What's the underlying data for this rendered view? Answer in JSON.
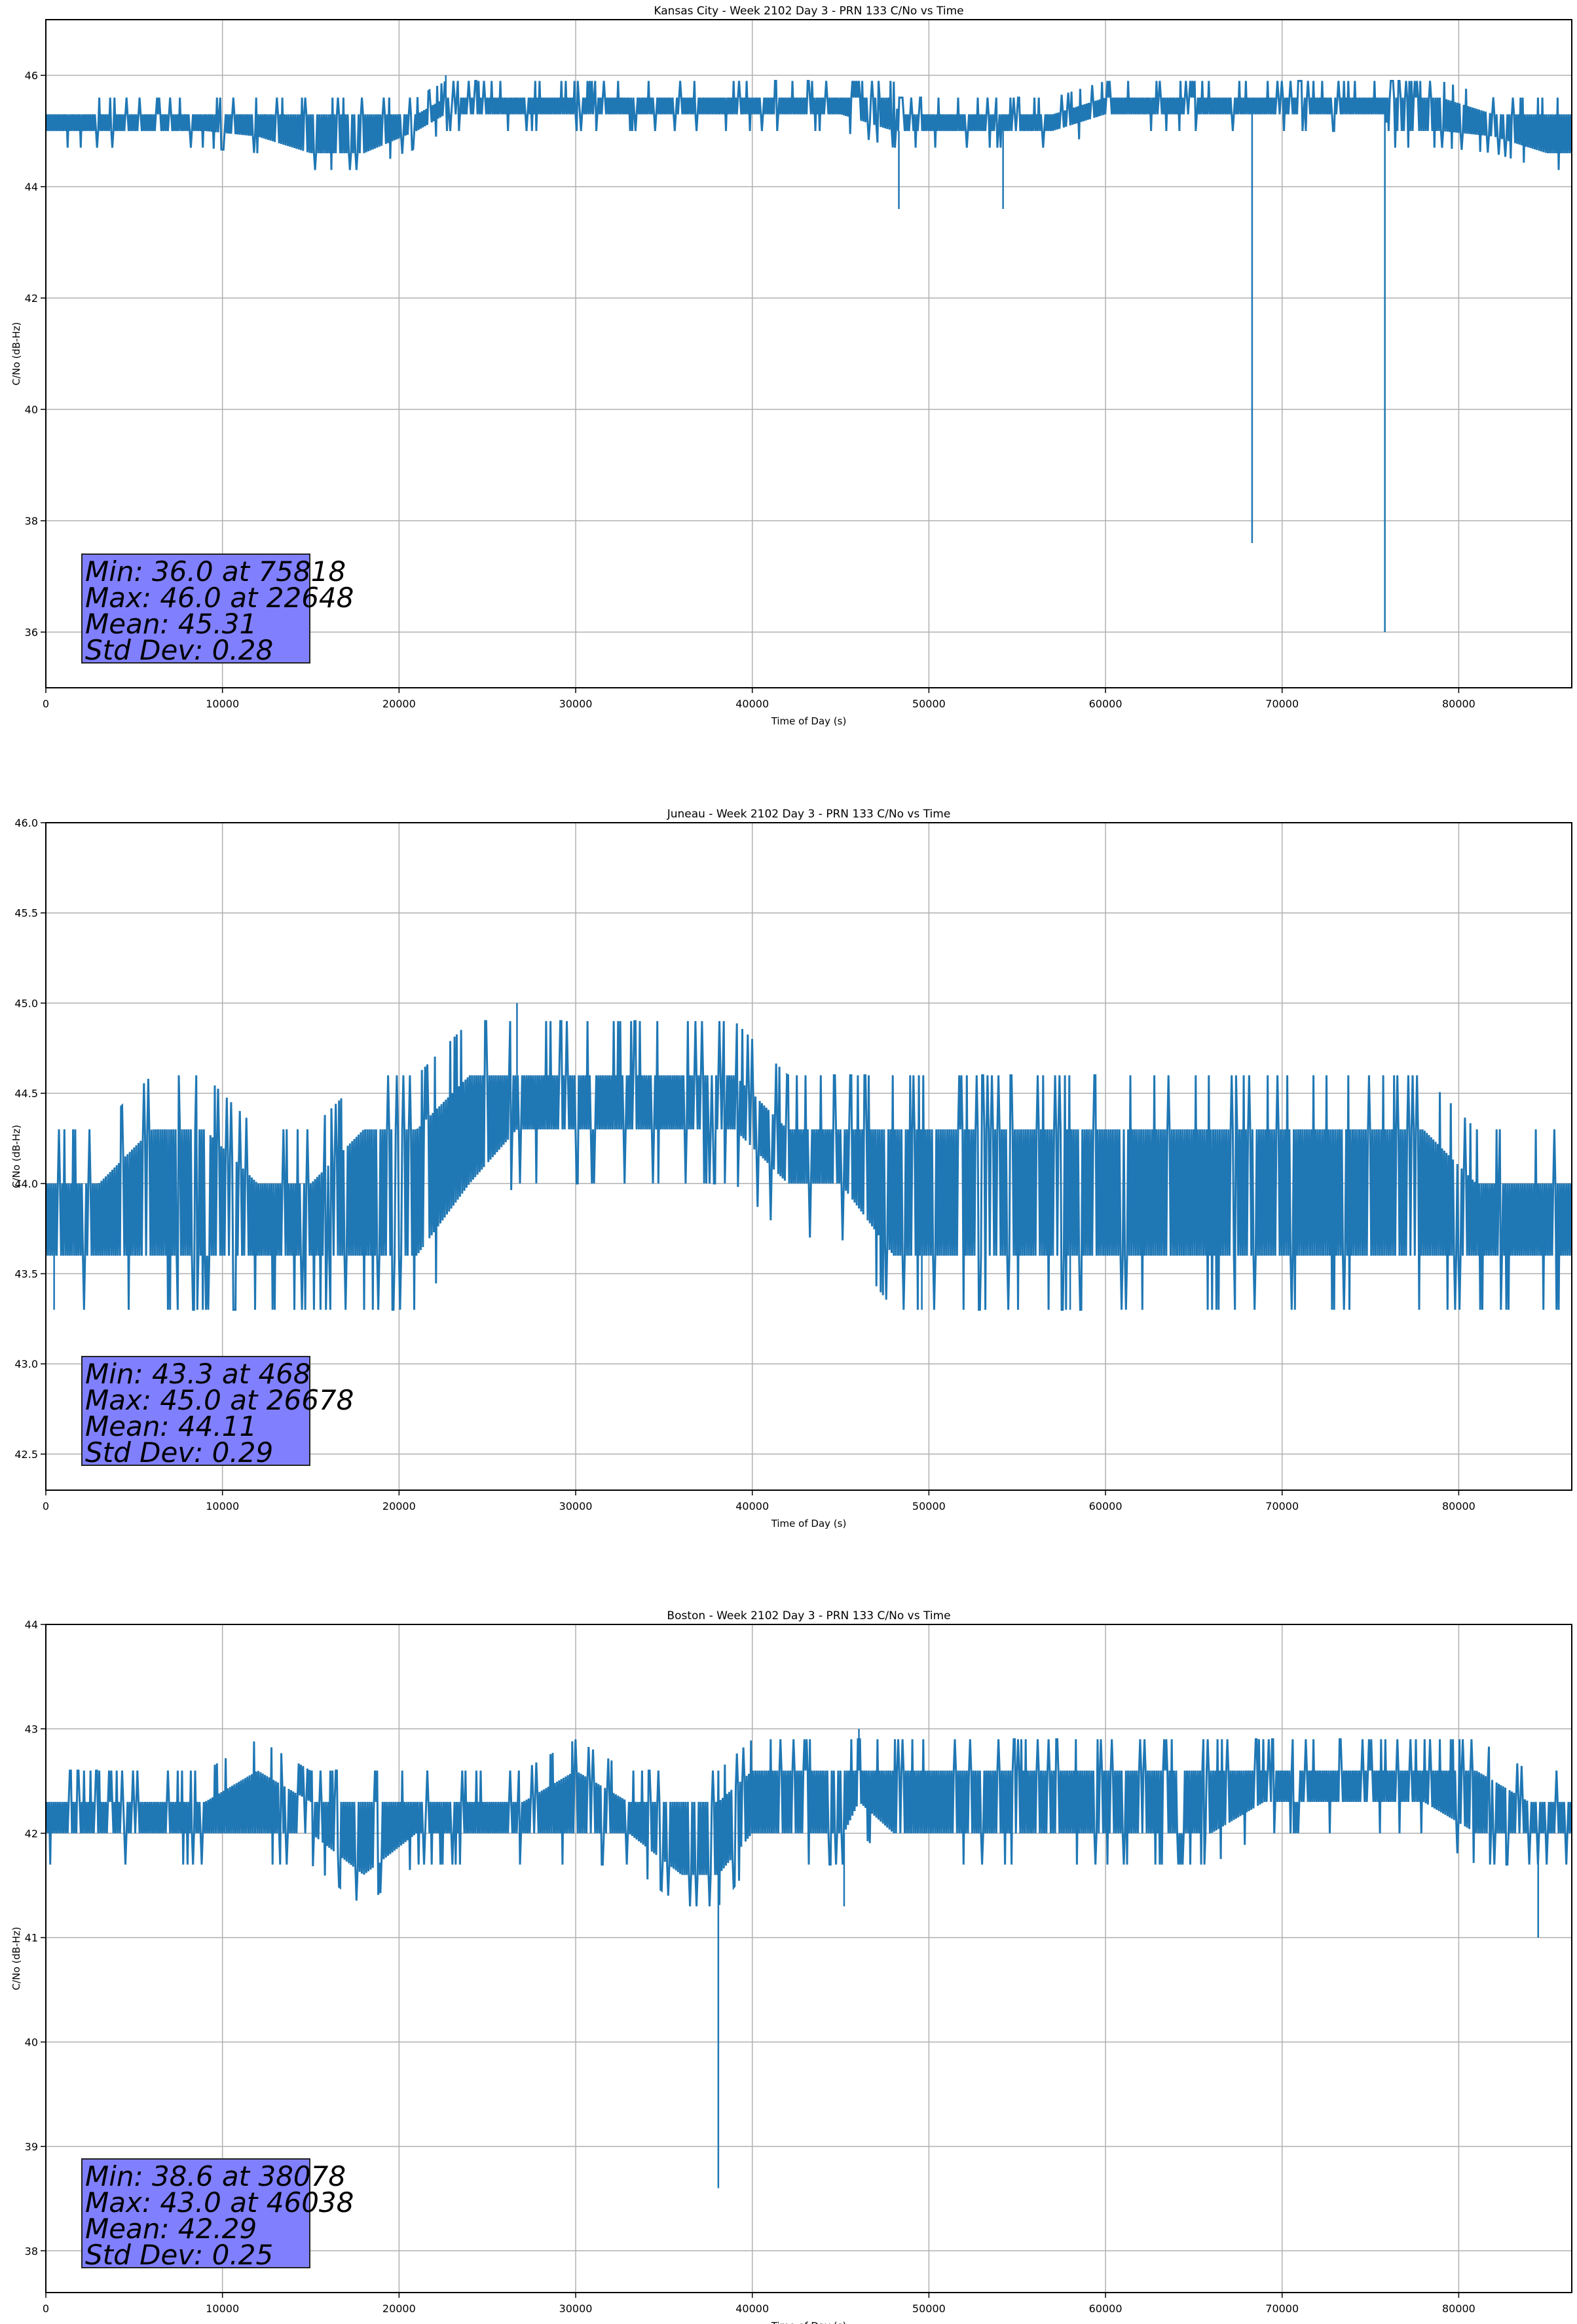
{
  "figure": {
    "colors": {
      "line": "#1f77b4",
      "grid": "#b0b0b0",
      "stats_box": "#8080ff"
    }
  },
  "chart_data": [
    {
      "type": "line",
      "title": "Kansas City - Week 2102 Day 3 - PRN 133 C/No vs Time",
      "xlabel": "Time of Day (s)",
      "ylabel": "C/No (dB-Hz)",
      "xlim": [
        0,
        86400
      ],
      "ylim": [
        35,
        47
      ],
      "xticks": [
        0,
        10000,
        20000,
        30000,
        40000,
        50000,
        60000,
        70000,
        80000
      ],
      "yticks": [
        36,
        38,
        40,
        42,
        44,
        46
      ],
      "ytick_labels": [
        "36",
        "38",
        "40",
        "42",
        "44",
        "46"
      ],
      "grid": true,
      "series": [
        {
          "values_description": "C/No sampled once per second; levels quantized to 0.3 dB steps",
          "x": [
            0,
            3000,
            6000,
            9000,
            12000,
            15000,
            18000,
            21000,
            22648,
            24000,
            27000,
            30000,
            33000,
            36000,
            39000,
            42000,
            45000,
            48000,
            48300,
            51000,
            54000,
            54200,
            57000,
            60000,
            63000,
            66000,
            68300,
            68500,
            70000,
            73000,
            75818,
            76000,
            79000,
            82000,
            85000,
            86400
          ],
          "y": [
            45.1,
            45.2,
            45.2,
            45.2,
            45.1,
            45.0,
            45.0,
            45.2,
            46.0,
            45.4,
            45.5,
            45.6,
            45.5,
            45.4,
            45.4,
            45.4,
            45.4,
            45.3,
            43.6,
            45.2,
            45.1,
            43.6,
            45.1,
            45.4,
            45.5,
            45.5,
            37.6,
            45.4,
            45.5,
            45.5,
            36.0,
            45.4,
            45.3,
            45.1,
            44.9,
            44.8
          ],
          "band_low": [
            45.0,
            45.0,
            45.0,
            45.0,
            44.9,
            44.6,
            44.6,
            45.0,
            45.3,
            45.3,
            45.3,
            45.3,
            45.3,
            45.3,
            45.3,
            45.3,
            45.3,
            45.0,
            45.0,
            45.0,
            45.0,
            45.0,
            45.0,
            45.3,
            45.3,
            45.3,
            45.3,
            45.3,
            45.3,
            45.3,
            45.3,
            45.0,
            45.0,
            44.9,
            44.6,
            44.6
          ],
          "band_high": [
            45.3,
            45.3,
            45.3,
            45.3,
            45.3,
            45.3,
            45.3,
            45.3,
            45.6,
            45.6,
            45.6,
            45.6,
            45.6,
            45.6,
            45.6,
            45.6,
            45.6,
            45.6,
            45.3,
            45.3,
            45.3,
            45.3,
            45.3,
            45.6,
            45.6,
            45.6,
            45.6,
            45.6,
            45.6,
            45.6,
            45.6,
            45.6,
            45.6,
            45.3,
            45.3,
            45.3
          ]
        }
      ],
      "stats": [
        "Min: 36.0 at 75818",
        "Max: 46.0 at 22648",
        "Mean: 45.31",
        "Std Dev: 0.28"
      ]
    },
    {
      "type": "line",
      "title": "Juneau - Week 2102 Day 3 - PRN 133 C/No vs Time",
      "xlabel": "Time of Day (s)",
      "ylabel": "C/No (dB-Hz)",
      "xlim": [
        0,
        86400
      ],
      "ylim": [
        42.3,
        46.0
      ],
      "xticks": [
        0,
        10000,
        20000,
        30000,
        40000,
        50000,
        60000,
        70000,
        80000
      ],
      "yticks": [
        42.5,
        43.0,
        43.5,
        44.0,
        44.5,
        45.0,
        45.5,
        46.0
      ],
      "ytick_labels": [
        "42.5",
        "43.0",
        "43.5",
        "44.0",
        "44.5",
        "45.0",
        "45.5",
        "46.0"
      ],
      "grid": true,
      "series": [
        {
          "values_description": "C/No sampled once per second; levels quantized to 0.3 dB steps",
          "x": [
            0,
            468,
            3000,
            6000,
            9000,
            12000,
            15000,
            18000,
            21000,
            24000,
            26678,
            27000,
            30000,
            33000,
            36000,
            39000,
            42000,
            45000,
            48000,
            49600,
            51000,
            54000,
            57000,
            58000,
            60000,
            63000,
            66000,
            69000,
            72000,
            75000,
            78000,
            81000,
            84000,
            86400
          ],
          "y": [
            43.8,
            43.3,
            43.9,
            44.0,
            44.1,
            43.9,
            43.9,
            44.1,
            44.0,
            44.3,
            45.0,
            44.4,
            44.5,
            44.5,
            44.4,
            44.4,
            44.1,
            44.1,
            44.0,
            43.3,
            44.0,
            44.0,
            43.9,
            43.3,
            44.0,
            44.0,
            44.1,
            44.1,
            44.0,
            43.9,
            43.9,
            43.8,
            43.7,
            43.8
          ],
          "band_low": [
            43.6,
            43.6,
            43.6,
            43.6,
            43.6,
            43.6,
            43.6,
            43.6,
            43.6,
            44.0,
            44.3,
            44.3,
            44.3,
            44.3,
            44.3,
            44.3,
            44.0,
            44.0,
            43.6,
            43.6,
            43.6,
            43.6,
            43.6,
            43.6,
            43.6,
            43.6,
            43.6,
            43.6,
            43.6,
            43.6,
            43.6,
            43.6,
            43.6,
            43.6
          ],
          "band_high": [
            44.0,
            44.0,
            44.0,
            44.3,
            44.3,
            44.0,
            44.0,
            44.3,
            44.3,
            44.6,
            44.6,
            44.6,
            44.6,
            44.6,
            44.6,
            44.6,
            44.3,
            44.3,
            44.3,
            44.3,
            44.3,
            44.3,
            44.3,
            44.3,
            44.3,
            44.3,
            44.3,
            44.3,
            44.3,
            44.3,
            44.3,
            44.0,
            44.0,
            44.0
          ]
        }
      ],
      "stats": [
        "Min: 43.3 at 468",
        "Max: 45.0 at 26678",
        "Mean: 44.11",
        "Std Dev: 0.29"
      ]
    },
    {
      "type": "line",
      "title": "Boston - Week 2102 Day 3 - PRN 133 C/No vs Time",
      "xlabel": "Time of Day (s)",
      "ylabel": "C/No (dB-Hz)",
      "xlim": [
        0,
        86400
      ],
      "ylim": [
        37.6,
        44.0
      ],
      "xticks": [
        0,
        10000,
        20000,
        30000,
        40000,
        50000,
        60000,
        70000,
        80000
      ],
      "yticks": [
        38,
        39,
        40,
        41,
        42,
        43,
        44
      ],
      "ytick_labels": [
        "38",
        "39",
        "40",
        "41",
        "42",
        "43",
        "44"
      ],
      "grid": true,
      "series": [
        {
          "values_description": "C/No sampled once per second; levels quantized to 0.3 dB steps",
          "x": [
            0,
            3000,
            6000,
            9000,
            12000,
            15000,
            18000,
            21000,
            24000,
            27000,
            30000,
            33000,
            36000,
            38078,
            40000,
            43000,
            45200,
            46038,
            48000,
            51000,
            54000,
            57000,
            60000,
            63000,
            66000,
            69000,
            72000,
            75000,
            78000,
            81000,
            84000,
            84500,
            86400
          ],
          "y": [
            42.2,
            42.2,
            42.1,
            42.2,
            42.3,
            42.2,
            42.0,
            42.1,
            42.2,
            42.2,
            42.3,
            42.2,
            42.1,
            38.6,
            42.3,
            42.3,
            41.3,
            43.0,
            42.4,
            42.4,
            42.4,
            42.4,
            42.3,
            42.4,
            42.4,
            42.5,
            42.5,
            42.5,
            42.5,
            42.4,
            42.2,
            41.0,
            42.1
          ],
          "band_low": [
            42.0,
            42.0,
            42.0,
            42.0,
            42.0,
            42.0,
            41.6,
            42.0,
            42.0,
            42.0,
            42.0,
            42.0,
            41.6,
            41.6,
            42.0,
            42.0,
            42.0,
            42.3,
            42.0,
            42.0,
            42.0,
            42.0,
            42.0,
            42.0,
            42.0,
            42.3,
            42.3,
            42.3,
            42.3,
            42.0,
            42.0,
            42.0,
            42.0
          ],
          "band_high": [
            42.3,
            42.3,
            42.3,
            42.3,
            42.6,
            42.3,
            42.3,
            42.3,
            42.3,
            42.3,
            42.6,
            42.3,
            42.3,
            42.3,
            42.6,
            42.6,
            42.6,
            42.6,
            42.6,
            42.6,
            42.6,
            42.6,
            42.6,
            42.6,
            42.6,
            42.6,
            42.6,
            42.6,
            42.6,
            42.6,
            42.3,
            42.3,
            42.3
          ]
        }
      ],
      "stats": [
        "Min: 38.6 at 38078",
        "Max: 43.0 at 46038",
        "Mean: 42.29",
        "Std Dev: 0.25"
      ]
    }
  ]
}
